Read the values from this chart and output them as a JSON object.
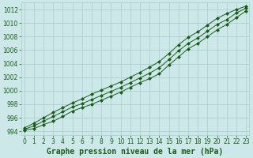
{
  "title": "Graphe pression niveau de la mer (hPa)",
  "background_color": "#cce8e8",
  "grid_color": "#aacccc",
  "line_color": "#1a5c1a",
  "marker_color": "#1a5c1a",
  "x_values": [
    0,
    1,
    2,
    3,
    4,
    5,
    6,
    7,
    8,
    9,
    10,
    11,
    12,
    13,
    14,
    15,
    16,
    17,
    18,
    19,
    20,
    21,
    22,
    23
  ],
  "y_low": [
    994.2,
    994.4,
    995.0,
    995.5,
    996.2,
    997.0,
    997.5,
    998.0,
    998.6,
    999.2,
    999.8,
    1000.5,
    1001.2,
    1001.8,
    1002.5,
    1003.8,
    1005.0,
    1006.2,
    1007.0,
    1008.0,
    1009.0,
    1009.8,
    1010.8,
    1011.8
  ],
  "y_mid": [
    994.3,
    994.8,
    995.5,
    996.2,
    996.9,
    997.6,
    998.1,
    998.7,
    999.3,
    999.9,
    1000.5,
    1001.2,
    1001.9,
    1002.6,
    1003.4,
    1004.6,
    1005.9,
    1007.0,
    1007.8,
    1008.8,
    1009.8,
    1010.5,
    1011.5,
    1012.2
  ],
  "y_high": [
    994.5,
    995.2,
    996.0,
    996.8,
    997.5,
    998.2,
    998.8,
    999.5,
    1000.1,
    1000.7,
    1001.3,
    1002.0,
    1002.7,
    1003.5,
    1004.3,
    1005.5,
    1006.8,
    1007.9,
    1008.7,
    1009.7,
    1010.7,
    1011.4,
    1012.0,
    1012.5
  ],
  "ylim": [
    993.5,
    1013.0
  ],
  "yticks": [
    994,
    996,
    998,
    1000,
    1002,
    1004,
    1006,
    1008,
    1010,
    1012
  ],
  "xlim": [
    -0.3,
    23.3
  ],
  "xticks": [
    0,
    1,
    2,
    3,
    4,
    5,
    6,
    7,
    8,
    9,
    10,
    11,
    12,
    13,
    14,
    15,
    16,
    17,
    18,
    19,
    20,
    21,
    22,
    23
  ],
  "tick_fontsize": 5.5,
  "title_fontsize": 7.0
}
